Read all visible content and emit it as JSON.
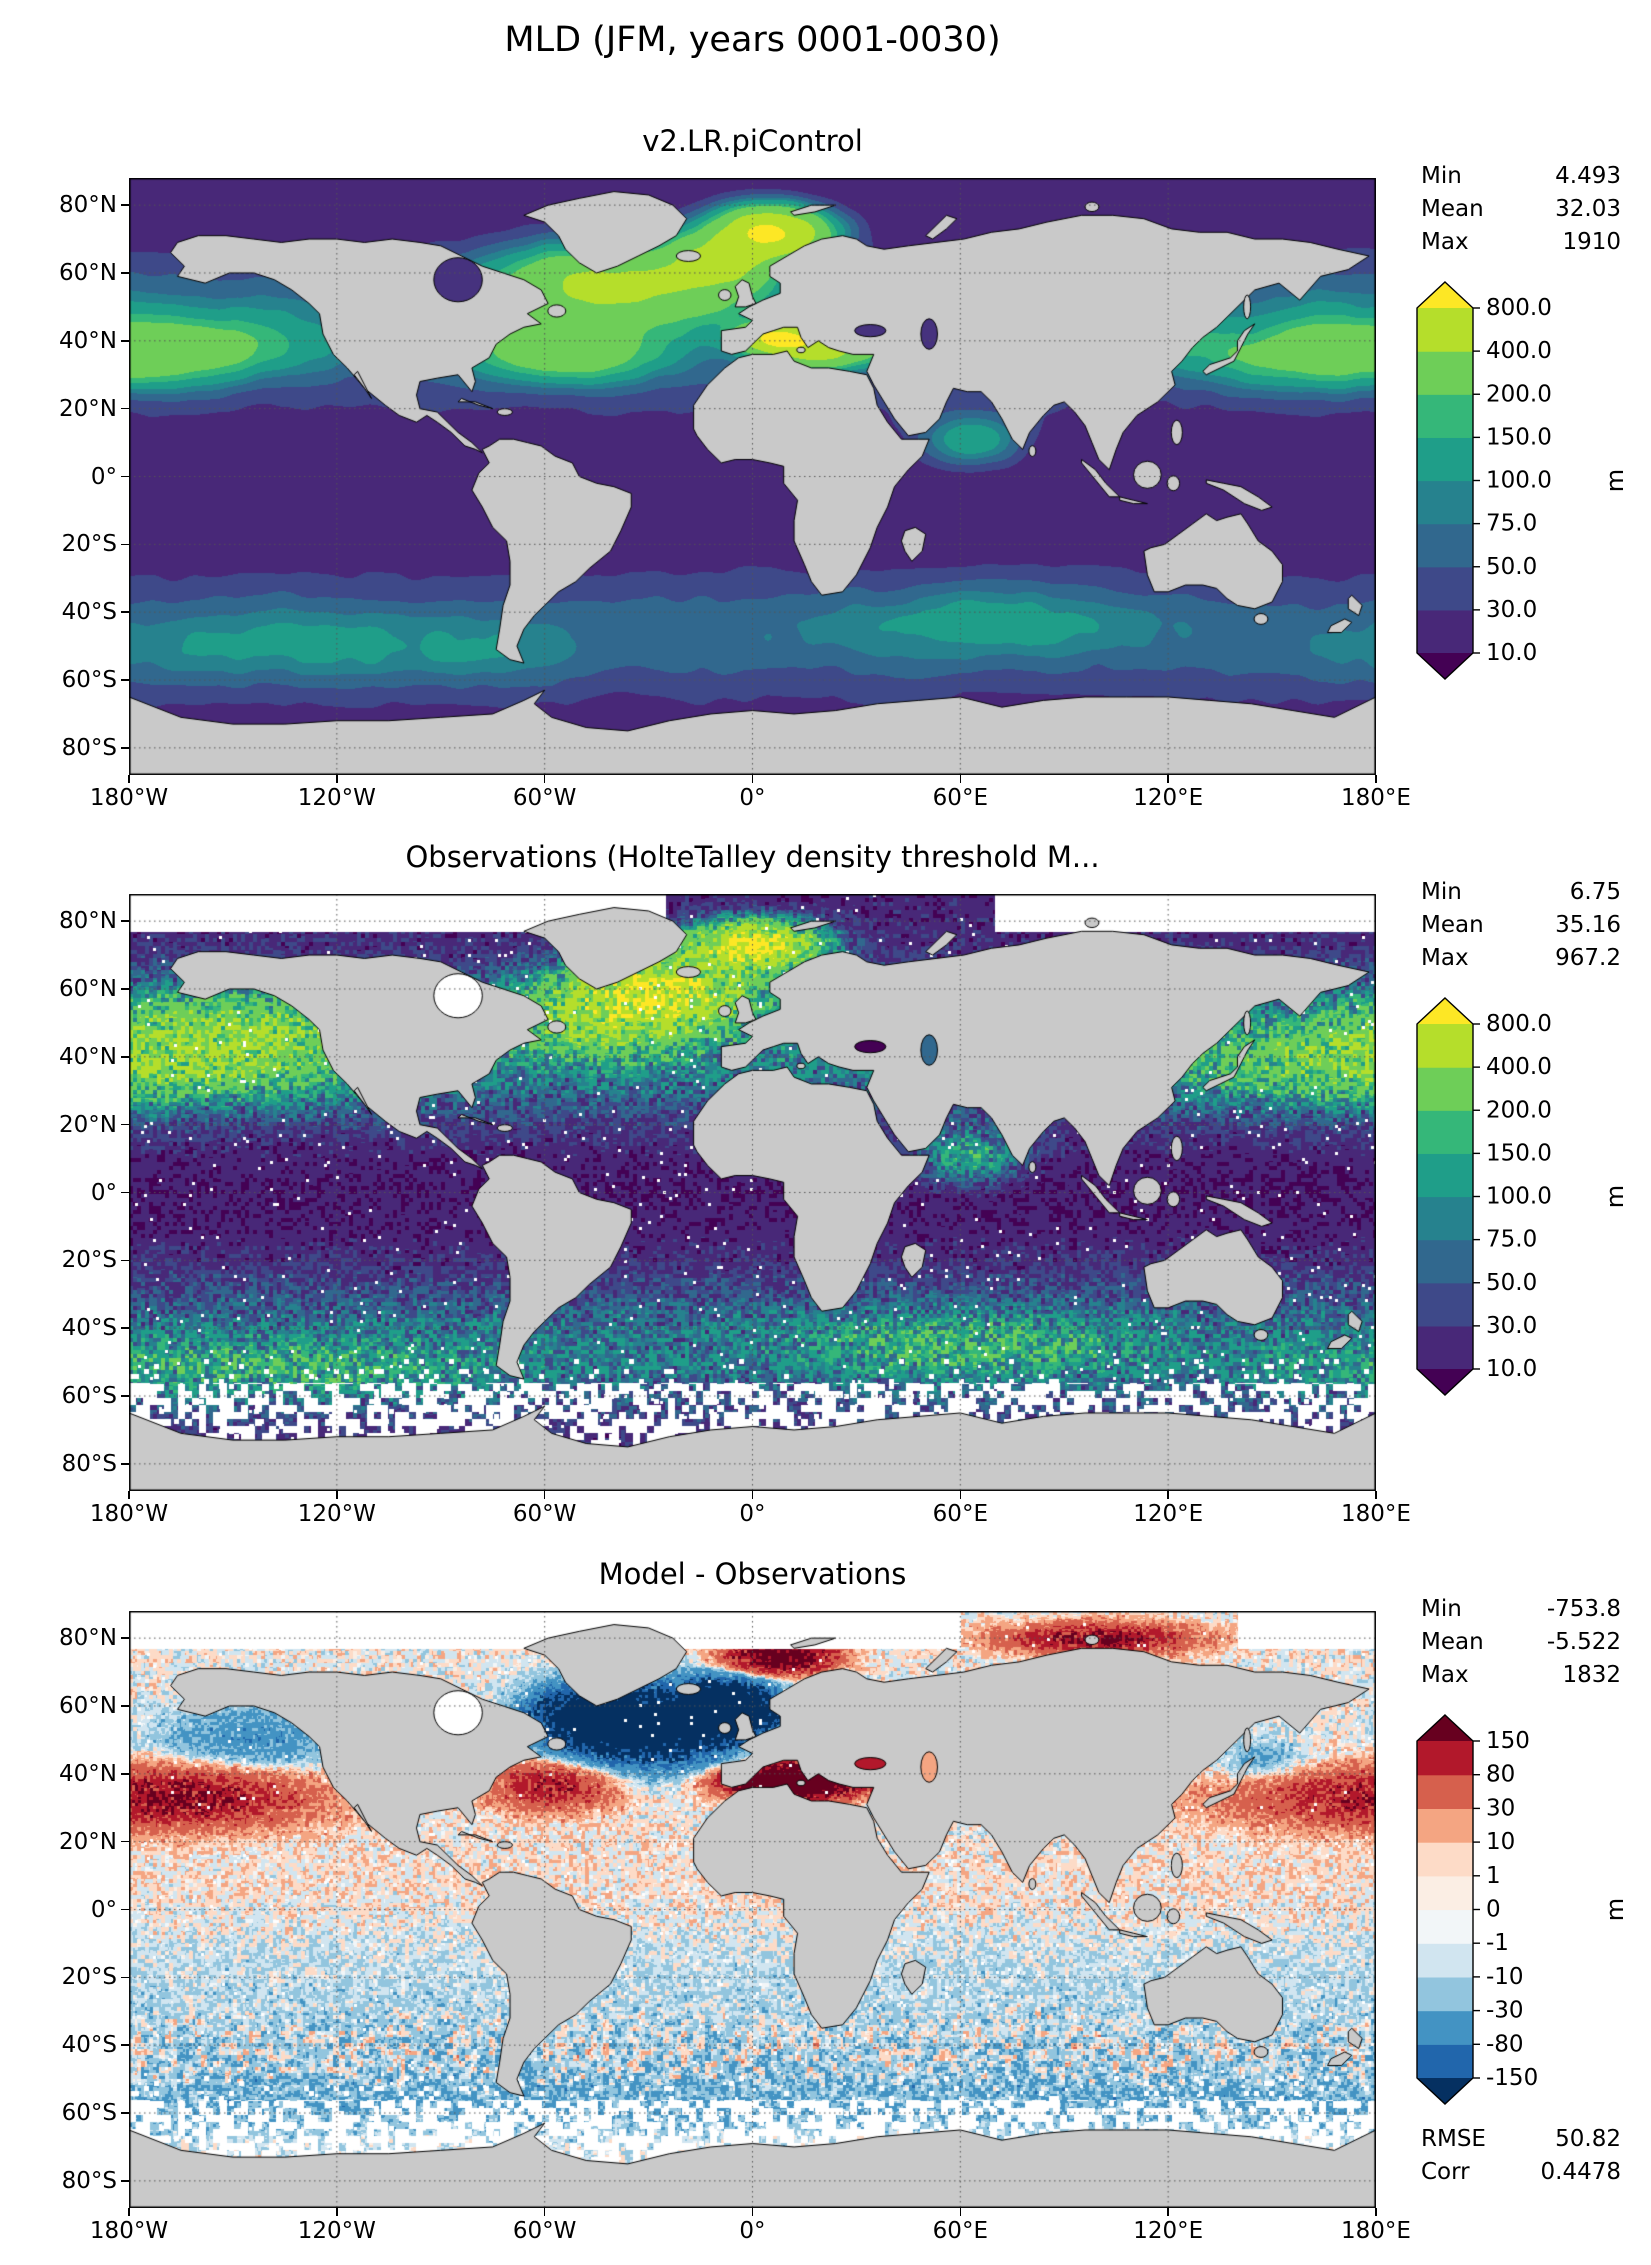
{
  "figure_title": "MLD (JFM, years 0001-0030)",
  "axes": {
    "yticks": [
      {
        "label": "80°N",
        "lat": 80
      },
      {
        "label": "60°N",
        "lat": 60
      },
      {
        "label": "40°N",
        "lat": 40
      },
      {
        "label": "20°N",
        "lat": 20
      },
      {
        "label": "0°",
        "lat": 0
      },
      {
        "label": "20°S",
        "lat": -20
      },
      {
        "label": "40°S",
        "lat": -40
      },
      {
        "label": "60°S",
        "lat": -60
      },
      {
        "label": "80°S",
        "lat": -80
      }
    ],
    "xticks": [
      {
        "label": "180°W",
        "lon": -180
      },
      {
        "label": "120°W",
        "lon": -120
      },
      {
        "label": "60°W",
        "lon": -60
      },
      {
        "label": "0°",
        "lon": 0
      },
      {
        "label": "60°E",
        "lon": 60
      },
      {
        "label": "120°E",
        "lon": 120
      },
      {
        "label": "180°E",
        "lon": 180
      }
    ]
  },
  "map_colors": {
    "land": "#c9c9c9",
    "coastline": "#000000",
    "grid": "#555555",
    "nodata": "#ffffff"
  },
  "panels": [
    {
      "id": "model",
      "title": "v2.LR.piControl",
      "stats": [
        {
          "label": "Min",
          "value": "4.493"
        },
        {
          "label": "Mean",
          "value": "32.03"
        },
        {
          "label": "Max",
          "value": "1910"
        }
      ],
      "colorbar": {
        "unit": "m",
        "levels": [
          10,
          30,
          50,
          75,
          100,
          150,
          200,
          400,
          800
        ],
        "tick_labels": [
          "10.0",
          "30.0",
          "50.0",
          "75.0",
          "100.0",
          "150.0",
          "200.0",
          "400.0",
          "800.0"
        ],
        "segment_colors": [
          "#482878",
          "#3e4989",
          "#31688e",
          "#26828e",
          "#1f9e89",
          "#35b779",
          "#6ece58",
          "#b5de2b"
        ],
        "under_color": "#440154",
        "over_color": "#fde725"
      }
    },
    {
      "id": "obs",
      "title": "Observations (HolteTalley density threshold M...",
      "stats": [
        {
          "label": "Min",
          "value": "6.75"
        },
        {
          "label": "Mean",
          "value": "35.16"
        },
        {
          "label": "Max",
          "value": "967.2"
        }
      ],
      "colorbar": {
        "unit": "m",
        "levels": [
          10,
          30,
          50,
          75,
          100,
          150,
          200,
          400,
          800
        ],
        "tick_labels": [
          "10.0",
          "30.0",
          "50.0",
          "75.0",
          "100.0",
          "150.0",
          "200.0",
          "400.0",
          "800.0"
        ],
        "segment_colors": [
          "#482878",
          "#3e4989",
          "#31688e",
          "#26828e",
          "#1f9e89",
          "#35b779",
          "#6ece58",
          "#b5de2b"
        ],
        "under_color": "#440154",
        "over_color": "#fde725"
      }
    },
    {
      "id": "diff",
      "title": "Model - Observations",
      "stats": [
        {
          "label": "Min",
          "value": "-753.8"
        },
        {
          "label": "Mean",
          "value": "-5.522"
        },
        {
          "label": "Max",
          "value": "1832"
        }
      ],
      "extra_stats": [
        {
          "label": "RMSE",
          "value": "50.82"
        },
        {
          "label": "Corr",
          "value": "0.4478"
        }
      ],
      "colorbar": {
        "unit": "m",
        "levels": [
          -150,
          -80,
          -30,
          -10,
          -1,
          0,
          1,
          10,
          30,
          80,
          150
        ],
        "tick_labels": [
          "-150",
          "-80",
          "-30",
          "-10",
          "-1",
          "0",
          "1",
          "10",
          "30",
          "80",
          "150"
        ],
        "segment_colors": [
          "#2166ac",
          "#4393c3",
          "#92c5de",
          "#d1e5f0",
          "#f2f6f8",
          "#fbeee4",
          "#fddbc7",
          "#f4a582",
          "#d6604d",
          "#b2182b"
        ],
        "under_color": "#053061",
        "over_color": "#67001f"
      }
    }
  ],
  "chart_data": [
    {
      "type": "heatmap",
      "title": "v2.LR.piControl",
      "variable": "Mixed Layer Depth (MLD)",
      "season": "JFM",
      "years": "0001-0030",
      "units": "m",
      "projection": "global lat-lon map",
      "lon_range": [
        -180,
        180
      ],
      "lat_range": [
        -90,
        90
      ],
      "xticks": [
        "180°W",
        "120°W",
        "60°W",
        "0°",
        "60°E",
        "120°E",
        "180°E"
      ],
      "yticks": [
        "80°N",
        "60°N",
        "40°N",
        "20°N",
        "0°",
        "20°S",
        "40°S",
        "60°S",
        "80°S"
      ],
      "color_levels": [
        10,
        30,
        50,
        75,
        100,
        150,
        200,
        400,
        800
      ],
      "colormap": "viridis-like sequential, extended both ends",
      "stats": {
        "min": 4.493,
        "mean": 32.03,
        "max": 1910
      }
    },
    {
      "type": "heatmap",
      "title": "Observations (HolteTalley density threshold M...",
      "variable": "Mixed Layer Depth (MLD)",
      "units": "m",
      "projection": "global lat-lon map",
      "lon_range": [
        -180,
        180
      ],
      "lat_range": [
        -90,
        90
      ],
      "color_levels": [
        10,
        30,
        50,
        75,
        100,
        150,
        200,
        400,
        800
      ],
      "colormap": "viridis-like sequential, extended both ends",
      "stats": {
        "min": 6.75,
        "mean": 35.16,
        "max": 967.2
      }
    },
    {
      "type": "heatmap",
      "title": "Model - Observations",
      "variable": "MLD difference",
      "units": "m",
      "projection": "global lat-lon map",
      "lon_range": [
        -180,
        180
      ],
      "lat_range": [
        -90,
        90
      ],
      "color_levels": [
        -150,
        -80,
        -30,
        -10,
        -1,
        0,
        1,
        10,
        30,
        80,
        150
      ],
      "colormap": "red-blue diverging, extended both ends",
      "stats": {
        "min": -753.8,
        "mean": -5.522,
        "max": 1832,
        "rmse": 50.82,
        "corr": 0.4478
      }
    }
  ]
}
